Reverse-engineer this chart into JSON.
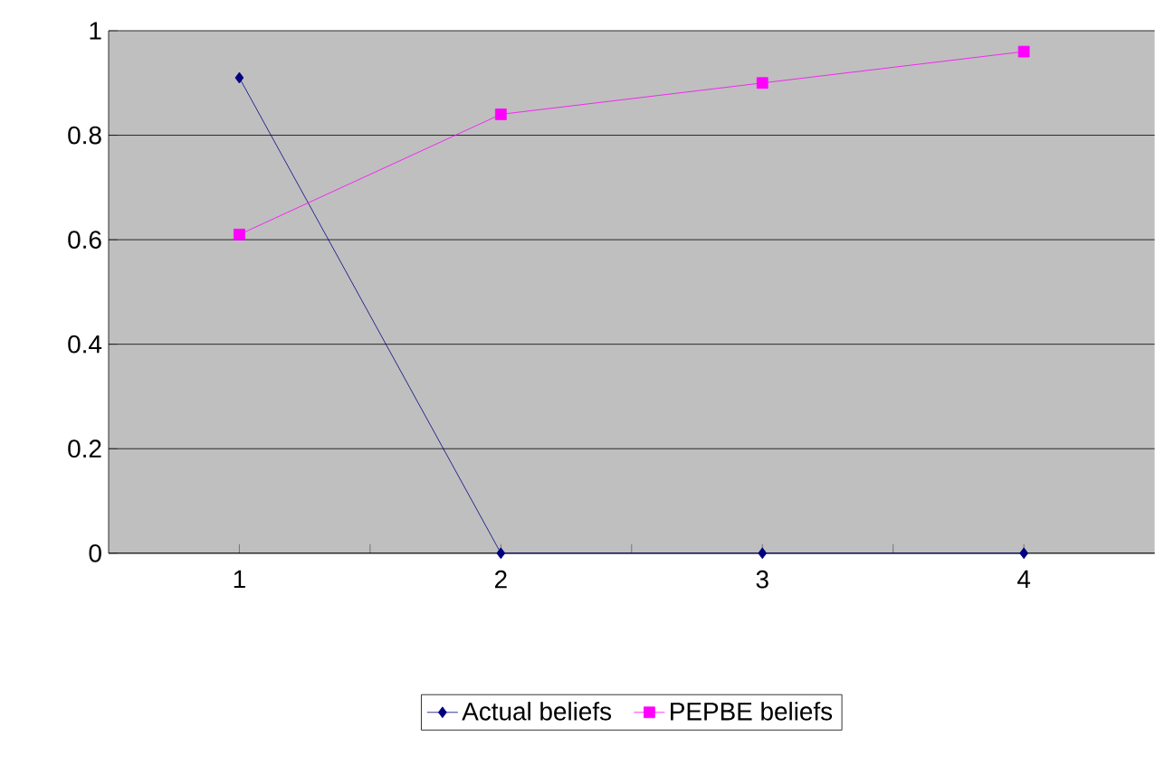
{
  "chart_data": {
    "type": "line",
    "categories": [
      "1",
      "2",
      "3",
      "4"
    ],
    "series": [
      {
        "name": "Actual beliefs",
        "color": "#000080",
        "marker": "diamond",
        "values": [
          0.91,
          0,
          0,
          0
        ]
      },
      {
        "name": "PEPBE beliefs",
        "color": "#ff00ff",
        "marker": "square",
        "values": [
          0.61,
          0.84,
          0.9,
          0.96
        ]
      }
    ],
    "ylim": [
      0,
      1
    ],
    "yticks": [
      0,
      0.2,
      0.4,
      0.6,
      0.8,
      1
    ],
    "grid": "y",
    "legend": "bottom"
  }
}
